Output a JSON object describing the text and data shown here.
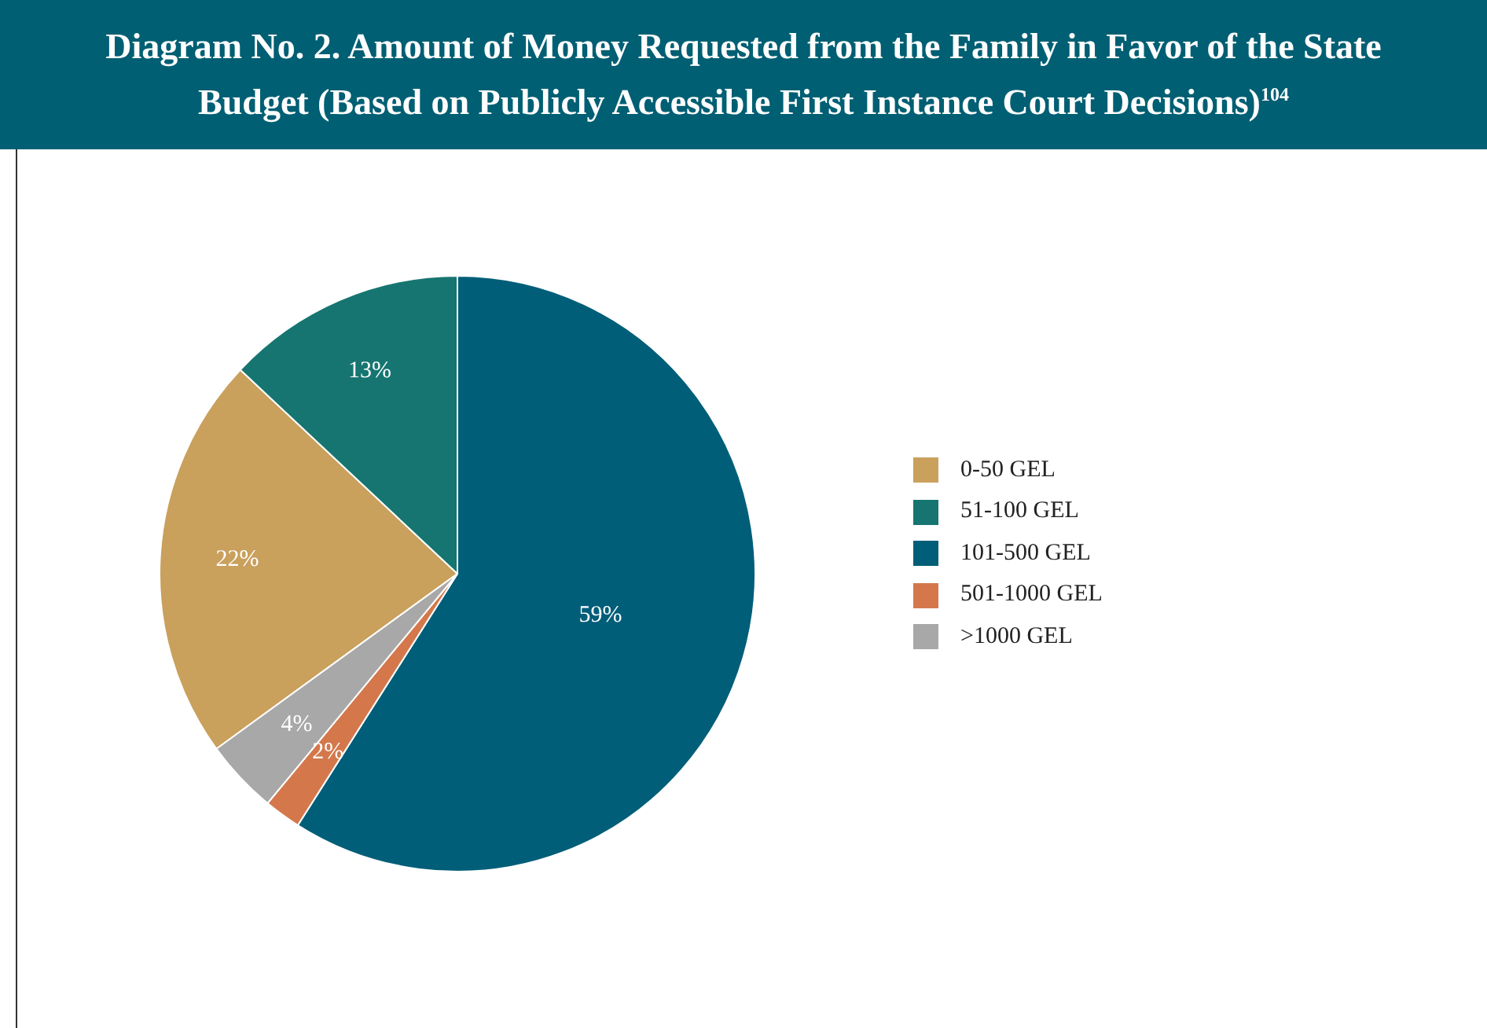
{
  "chart_data": {
    "type": "pie",
    "title": "Diagram No. 2. Amount of Money Requested from the Family in Favor of the State Budget (Based on Publicly Accessible First Instance Court Decisions)$^{104}$",
    "categories": [
      "0-50 GEL",
      "51-100 GEL",
      "101-500 GEL",
      "501-1000 GEL",
      ">1000 GEL"
    ],
    "values": [
      22,
      13,
      59,
      2,
      4
    ],
    "colors": [
      "#c9a05c",
      "#167570",
      "#005e78",
      "#d4784c",
      "#a8a8a8"
    ],
    "value_labels": [
      "22%",
      "13%",
      "59%",
      "2%",
      "4%"
    ],
    "legend": "right"
  }
}
